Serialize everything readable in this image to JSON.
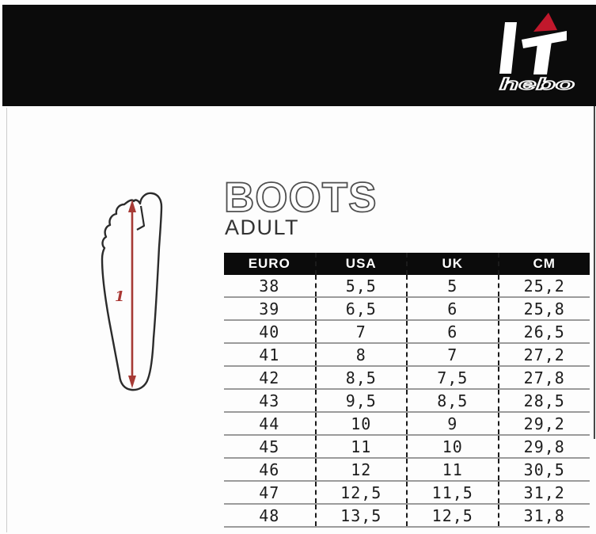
{
  "header": {
    "logo": {
      "text": "hebo"
    }
  },
  "title": {
    "main": "BOOTS",
    "sub": "ADULT"
  },
  "foot_diagram": {
    "measure_label": "1"
  },
  "chart_data": {
    "type": "table",
    "title": "BOOTS ADULT size conversion",
    "columns": [
      "EURO",
      "USA",
      "UK",
      "CM"
    ],
    "rows": [
      [
        "38",
        "5,5",
        "5",
        "25,2"
      ],
      [
        "39",
        "6,5",
        "6",
        "25,8"
      ],
      [
        "40",
        "7",
        "6",
        "26,5"
      ],
      [
        "41",
        "8",
        "7",
        "27,2"
      ],
      [
        "42",
        "8,5",
        "7,5",
        "27,8"
      ],
      [
        "43",
        "9,5",
        "8,5",
        "28,5"
      ],
      [
        "44",
        "10",
        "9",
        "29,2"
      ],
      [
        "45",
        "11",
        "10",
        "29,8"
      ],
      [
        "46",
        "12",
        "11",
        "30,5"
      ],
      [
        "47",
        "12,5",
        "11,5",
        "31,2"
      ],
      [
        "48",
        "13,5",
        "12,5",
        "31,8"
      ]
    ]
  },
  "colors": {
    "brand_black": "#0b0b0b",
    "accent_red": "#c1182c",
    "arrow_red": "#a63a35",
    "row_line_gray": "#9b9b9b"
  }
}
